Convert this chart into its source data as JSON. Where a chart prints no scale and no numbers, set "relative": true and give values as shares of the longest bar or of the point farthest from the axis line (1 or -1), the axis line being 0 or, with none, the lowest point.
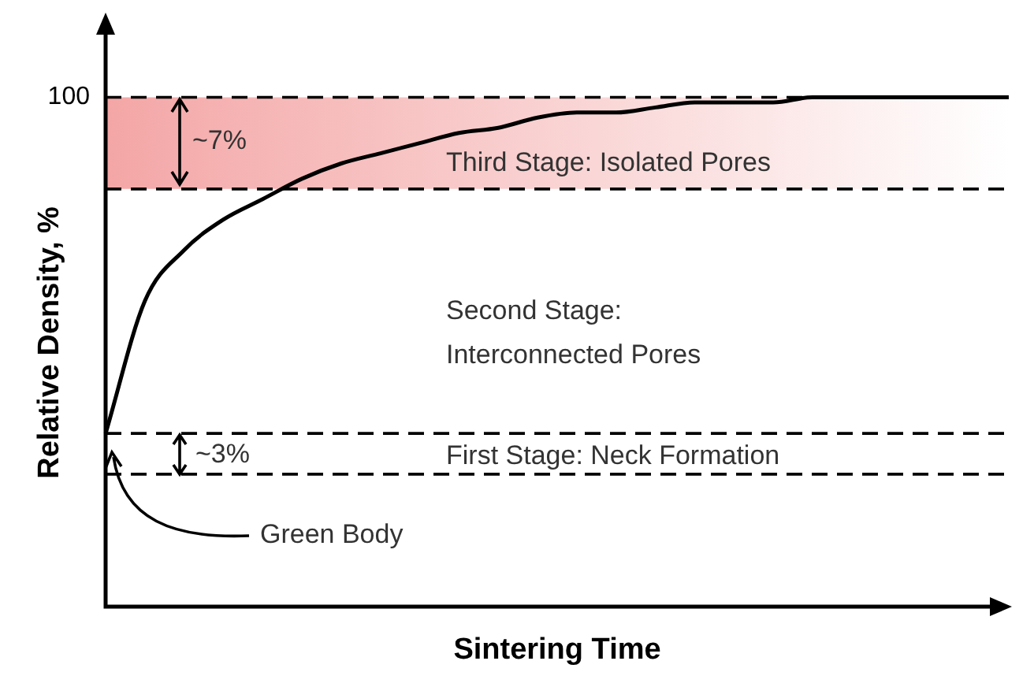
{
  "chart_data": {
    "type": "line",
    "relative": true,
    "xlabel": "Sintering Time",
    "ylabel": "Relative Density, %",
    "categories": [
      null,
      null,
      null,
      null,
      null,
      null,
      null,
      null,
      null,
      null,
      null,
      null,
      null,
      null,
      null,
      null,
      null,
      null,
      null,
      null,
      null,
      null,
      null,
      null
    ],
    "series": [
      {
        "color": "#000000",
        "values": [
          0.34,
          0.6,
          0.7,
          0.76,
          0.8,
          0.84,
          0.87,
          0.89,
          0.91,
          0.93,
          0.94,
          0.96,
          0.97,
          0.97,
          0.98,
          0.99,
          0.99,
          0.99,
          1,
          1,
          1,
          1,
          1,
          1
        ]
      }
    ],
    "marker": "none",
    "line_style": "solid",
    "legend": false,
    "ref_lines": [
      {
        "axis": "y",
        "value": 1,
        "label": "100",
        "line_style": "dashed",
        "color": "#000000"
      },
      {
        "axis": "y",
        "value": 0.82,
        "line_style": "dashed",
        "color": "#000000"
      },
      {
        "axis": "y",
        "value": 0.34,
        "line_style": "dashed",
        "color": "#000000"
      },
      {
        "axis": "y",
        "value": 0.26,
        "line_style": "dashed",
        "color": "#000000"
      }
    ],
    "bands": [
      {
        "axis": "y",
        "from": 0.82,
        "to": 1,
        "label": "Third Stage: Isolated Pores",
        "color": "#f4a6a6"
      }
    ],
    "annotations": [
      "~7%",
      "Second Stage:\nInterconnected Pores",
      "~3%",
      "First Stage: Neck Formation",
      "Green Body"
    ]
  }
}
